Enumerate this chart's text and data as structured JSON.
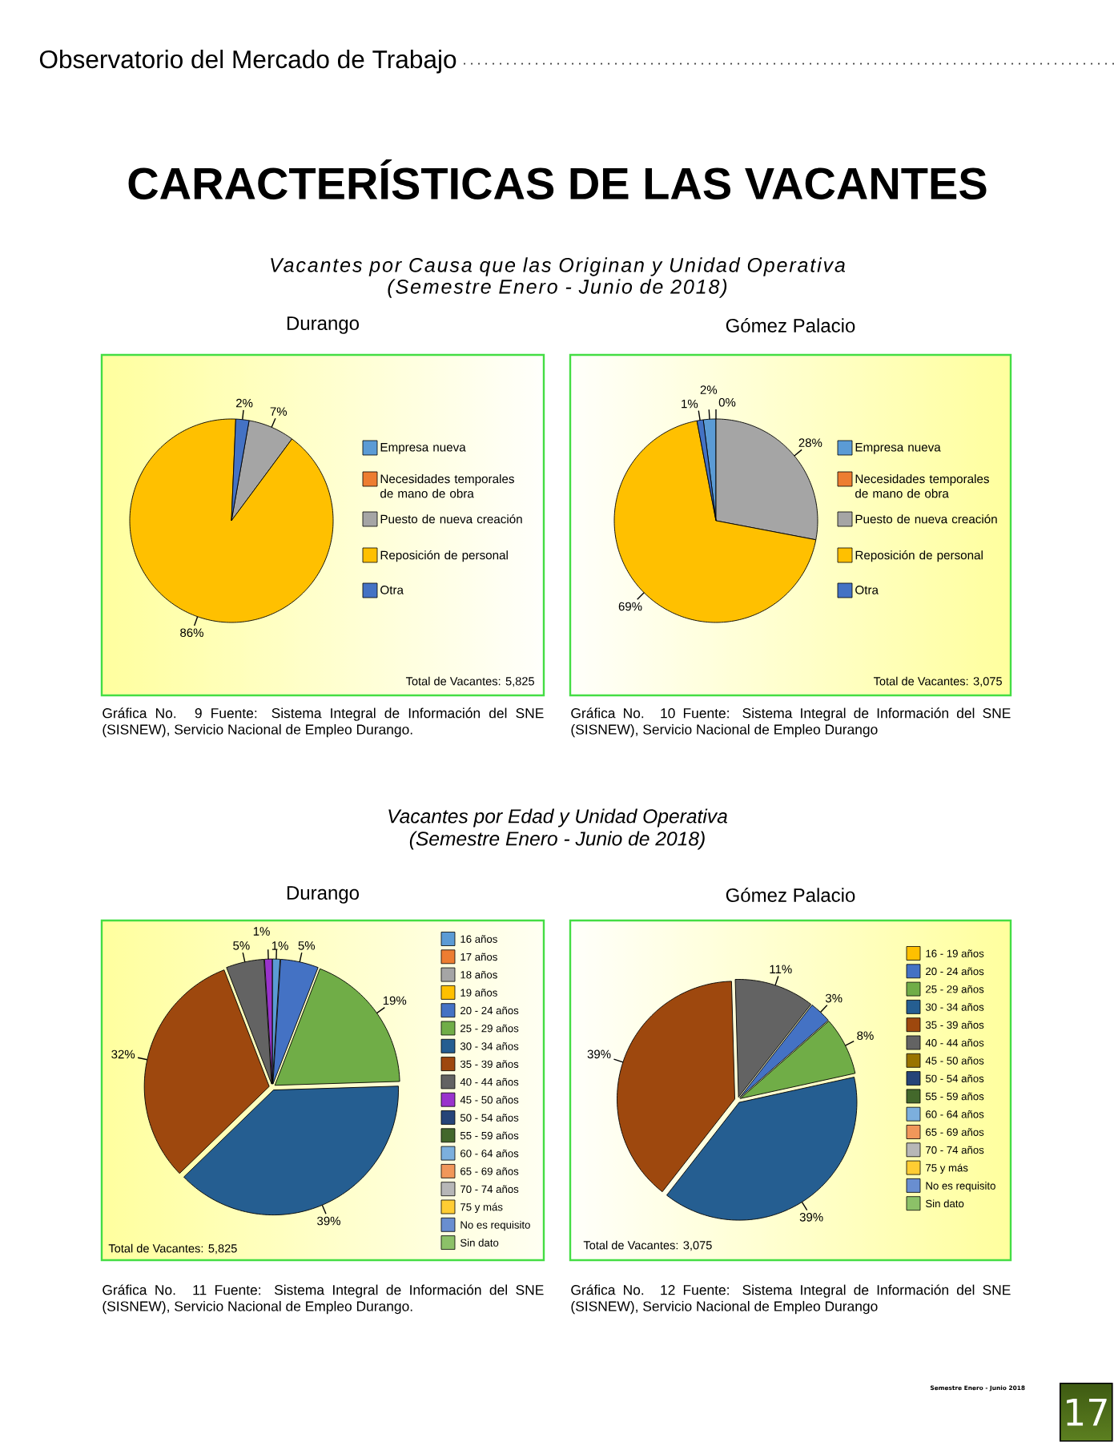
{
  "chart_data": [
    {
      "type": "pie",
      "title": "Durango",
      "categories": [
        "Empresa nueva",
        "Necesidades temporales de mano de obra",
        "Puesto de nueva creación",
        "Reposición de personal",
        "Otra"
      ],
      "values": [
        null,
        null,
        7,
        86,
        2
      ],
      "colors": [
        "#5b9bd5",
        "#ed7d31",
        "#a5a5a5",
        "#ffc000",
        "#4472c4"
      ],
      "value_labels": [
        null,
        null,
        "7%",
        "86%",
        "2%"
      ],
      "legend": "right",
      "annotations": [
        "Total de Vacantes: 5,825",
        "Gráfica No. 9 Fuente: Sistema Integral de Información del SNE (SISNEW), Servicio Nacional de Empleo Durango.",
        "Observatorio del Mercado de Trabajo",
        "CARACTERÍSTICAS DE LAS VACANTES",
        "Vacantes por Causa que las Originan y Unidad Operativa",
        "(Semestre Enero - Junio de 2018)"
      ]
    },
    {
      "type": "pie",
      "title": "Gómez Palacio",
      "categories": [
        "Empresa nueva",
        "Necesidades temporales de mano de obra",
        "Puesto de nueva creación",
        "Reposición de personal",
        "Otra"
      ],
      "values": [
        2,
        0,
        28,
        69,
        1
      ],
      "colors": [
        "#5b9bd5",
        "#ed7d31",
        "#a5a5a5",
        "#ffc000",
        "#4472c4"
      ],
      "value_labels": [
        "2%",
        "0%",
        "28%",
        "69%",
        "1%"
      ],
      "legend": "right",
      "annotations": [
        "Total de Vacantes: 3,075",
        "Gráfica No. 10 Fuente: Sistema Integral de Información del SNE (SISNEW), Servicio Nacional de Empleo Durango"
      ]
    },
    {
      "type": "pie",
      "title": "Durango",
      "categories": [
        "16 años",
        "17 años",
        "18 años",
        "19 años",
        "20 - 24 años",
        "25 - 29 años",
        "30 - 34 años",
        "35 - 39 años",
        "40 - 44 años",
        "45 - 50 años",
        "50 - 54 años",
        "55 - 59 años",
        "60 - 64 años",
        "65 - 69 años",
        "70 - 74 años",
        "75 y más",
        "No es requisito",
        "Sin dato"
      ],
      "values": [
        1,
        null,
        null,
        null,
        5,
        19,
        39,
        32,
        5,
        1,
        null,
        null,
        null,
        null,
        null,
        null,
        null,
        null
      ],
      "colors": [
        "#5b9bd5",
        "#ed7d31",
        "#a5a5a5",
        "#ffc000",
        "#4472c4",
        "#70ad47",
        "#255e91",
        "#9e480e",
        "#636363",
        "#9933cc",
        "#264478",
        "#43682b",
        "#7cafdd",
        "#f1975a",
        "#b7b7b7",
        "#ffcd33",
        "#698ed0",
        "#8cc168"
      ],
      "value_labels": [
        "1%",
        null,
        null,
        null,
        "5%",
        "19%",
        "39%",
        "32%",
        "5%",
        "1%",
        null,
        null,
        null,
        null,
        null,
        null,
        null,
        null
      ],
      "legend": "right",
      "annotations": [
        "Total de Vacantes: 5,825",
        "Gráfica No. 11 Fuente: Sistema Integral de Información del SNE (SISNEW), Servicio Nacional de Empleo Durango.",
        "Vacantes por Edad y Unidad Operativa",
        "(Semestre Enero - Junio de 2018)"
      ]
    },
    {
      "type": "pie",
      "title": "Gómez Palacio",
      "categories": [
        "16 - 19 años",
        "20 - 24 años",
        "25 - 29 años",
        "30 - 34 años",
        "35 - 39 años",
        "40 - 44 años",
        "45 - 50 años",
        "50 - 54 años",
        "55 - 59 años",
        "60 - 64 años",
        "65 - 69 años",
        "70 - 74 años",
        "75 y más",
        "No es requisito",
        "Sin dato"
      ],
      "values": [
        null,
        3,
        8,
        39,
        39,
        11,
        null,
        null,
        null,
        null,
        null,
        null,
        null,
        null,
        null
      ],
      "colors": [
        "#ffc000",
        "#4472c4",
        "#70ad47",
        "#255e91",
        "#9e480e",
        "#636363",
        "#997300",
        "#264478",
        "#43682b",
        "#7cafdd",
        "#f1975a",
        "#b7b7b7",
        "#ffcd33",
        "#698ed0",
        "#8cc168"
      ],
      "value_labels": [
        null,
        "3%",
        "8%",
        "39%",
        "39%",
        "11%",
        null,
        null,
        null,
        null,
        null,
        null,
        null,
        null,
        null
      ],
      "legend": "right",
      "annotations": [
        "Total de Vacantes: 3,075",
        "Gráfica No. 12 Fuente: Sistema Integral de Información del SNE (SISNEW), Servicio Nacional de Empleo Durango",
        "Semestre Enero - Junio 2018",
        "17"
      ]
    }
  ]
}
